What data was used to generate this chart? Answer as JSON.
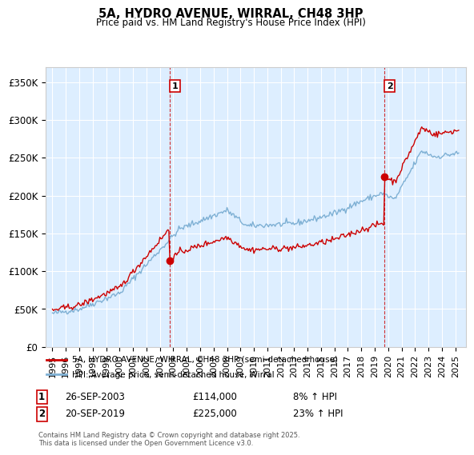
{
  "title": "5A, HYDRO AVENUE, WIRRAL, CH48 3HP",
  "subtitle": "Price paid vs. HM Land Registry's House Price Index (HPI)",
  "legend_line1": "5A, HYDRO AVENUE, WIRRAL, CH48 3HP (semi-detached house)",
  "legend_line2": "HPI: Average price, semi-detached house, Wirral",
  "footer": "Contains HM Land Registry data © Crown copyright and database right 2025.\nThis data is licensed under the Open Government Licence v3.0.",
  "annotation1_label": "1",
  "annotation1_date": "26-SEP-2003",
  "annotation1_price": "£114,000",
  "annotation1_hpi": "8% ↑ HPI",
  "annotation2_label": "2",
  "annotation2_date": "20-SEP-2019",
  "annotation2_price": "£225,000",
  "annotation2_hpi": "23% ↑ HPI",
  "sale1_x": 2003.73,
  "sale1_y": 114000,
  "sale2_x": 2019.72,
  "sale2_y": 225000,
  "red_color": "#cc0000",
  "blue_color": "#7eb0d4",
  "blue_fill": "#ddeeff",
  "grid_color": "#cccccc",
  "ylim": [
    0,
    370000
  ],
  "xlim": [
    1994.5,
    2025.8
  ],
  "yticks": [
    0,
    50000,
    100000,
    150000,
    200000,
    250000,
    300000,
    350000
  ],
  "ytick_labels": [
    "£0",
    "£50K",
    "£100K",
    "£150K",
    "£200K",
    "£250K",
    "£300K",
    "£350K"
  ],
  "xticks": [
    1995,
    1996,
    1997,
    1998,
    1999,
    2000,
    2001,
    2002,
    2003,
    2004,
    2005,
    2006,
    2007,
    2008,
    2009,
    2010,
    2011,
    2012,
    2013,
    2014,
    2015,
    2016,
    2017,
    2018,
    2019,
    2020,
    2021,
    2022,
    2023,
    2024,
    2025
  ]
}
